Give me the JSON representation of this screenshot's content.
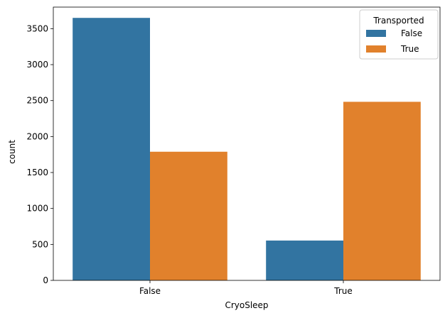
{
  "chart_data": {
    "type": "bar",
    "categories": [
      "False",
      "True"
    ],
    "xlabel": "CryoSleep",
    "ylabel": "count",
    "ylim": [
      0,
      3800
    ],
    "yticks": [
      0,
      500,
      1000,
      1500,
      2000,
      2500,
      3000,
      3500
    ],
    "grid": false,
    "legend": {
      "title": "Transported",
      "placement": "top-right"
    },
    "series": [
      {
        "name": "False",
        "color": "#3274a1",
        "values": [
          3650,
          554
        ]
      },
      {
        "name": "True",
        "color": "#e1812c",
        "values": [
          1789,
          2483
        ]
      }
    ]
  }
}
